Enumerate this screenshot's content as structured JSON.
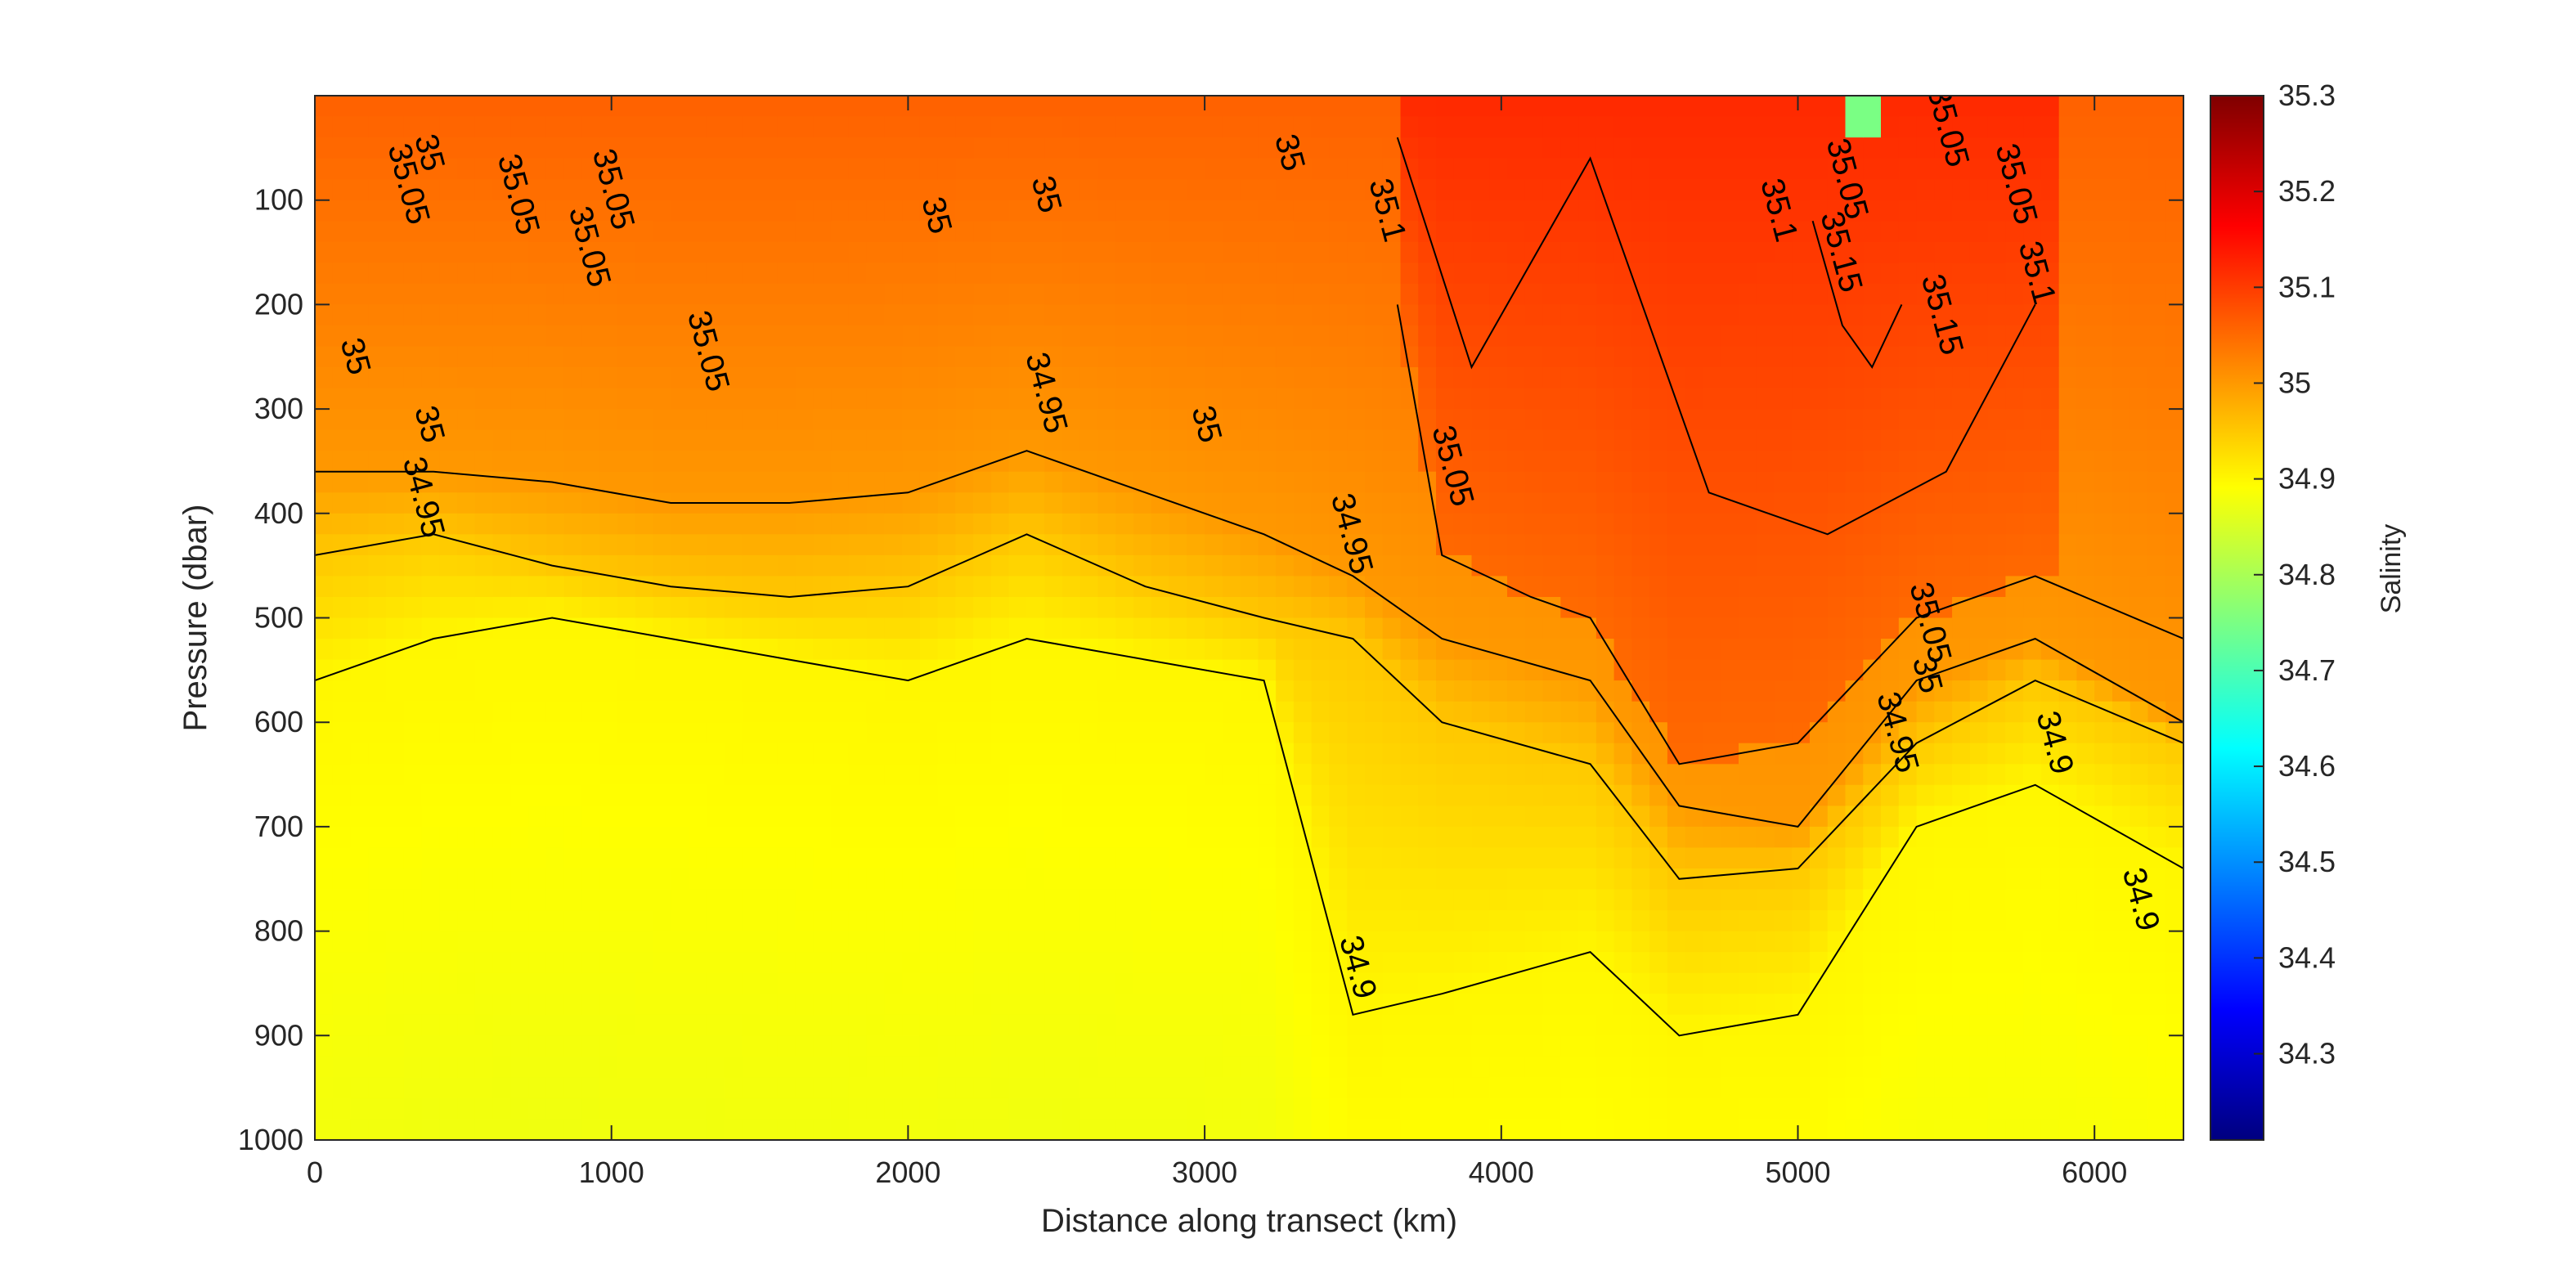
{
  "chart_data": {
    "type": "heatmap",
    "title": "",
    "xlabel": "Distance along transect (km)",
    "ylabel": "Pressure (dbar)",
    "xlim": [
      0,
      6300
    ],
    "ylim": [
      1000,
      0
    ],
    "x_ticks": [
      "0",
      "1000",
      "2000",
      "3000",
      "4000",
      "5000",
      "6000"
    ],
    "x_tick_values": [
      0,
      1000,
      2000,
      3000,
      4000,
      5000,
      6000
    ],
    "y_ticks": [
      "100",
      "200",
      "300",
      "400",
      "500",
      "600",
      "700",
      "800",
      "900",
      "1000"
    ],
    "y_tick_values": [
      100,
      200,
      300,
      400,
      500,
      600,
      700,
      800,
      900,
      1000
    ],
    "colorbar": {
      "label": "Salinity",
      "range": [
        34.21,
        35.3
      ],
      "ticks": [
        "34.3",
        "34.4",
        "34.5",
        "34.6",
        "34.7",
        "34.8",
        "34.9",
        "35",
        "35.1",
        "35.2",
        "35.3"
      ],
      "tick_values": [
        34.3,
        34.4,
        34.5,
        34.6,
        34.7,
        34.8,
        34.9,
        35.0,
        35.1,
        35.2,
        35.3
      ],
      "colormap": [
        "#00007f",
        "#0000ff",
        "#007fff",
        "#00ffff",
        "#7fff7f",
        "#ffff00",
        "#ff7f00",
        "#ff0000",
        "#7f0000"
      ]
    },
    "grid": false,
    "contour_levels": [
      34.9,
      34.95,
      35.0,
      35.05,
      35.1,
      35.15
    ],
    "contours": [
      {
        "level": 34.9,
        "x": [
          0,
          400,
          800,
          1200,
          1600,
          2000,
          2400,
          2800,
          3200,
          3500,
          3800,
          4300,
          4600,
          5000,
          5400,
          5800,
          6300
        ],
        "depth": [
          560,
          520,
          500,
          520,
          540,
          560,
          520,
          540,
          560,
          880,
          860,
          820,
          900,
          880,
          700,
          660,
          740
        ]
      },
      {
        "level": 34.95,
        "x": [
          0,
          400,
          800,
          1200,
          1600,
          2000,
          2400,
          2800,
          3200,
          3500,
          3800,
          4300,
          4600,
          5000,
          5400,
          5800,
          6300
        ],
        "depth": [
          440,
          420,
          450,
          470,
          480,
          470,
          420,
          470,
          500,
          520,
          600,
          640,
          750,
          740,
          620,
          560,
          620
        ]
      },
      {
        "level": 35.0,
        "x": [
          0,
          400,
          800,
          1200,
          1600,
          2000,
          2400,
          2800,
          3200,
          3500,
          3800,
          4300,
          4600,
          5000,
          5400,
          5800,
          6300
        ],
        "depth": [
          360,
          360,
          370,
          390,
          390,
          380,
          340,
          380,
          420,
          460,
          520,
          560,
          680,
          700,
          560,
          520,
          600
        ]
      },
      {
        "level": 35.05,
        "x": [
          3650,
          3800,
          4100,
          4300,
          4600,
          5000,
          5400,
          5800,
          6300
        ],
        "depth": [
          200,
          440,
          480,
          500,
          640,
          620,
          500,
          460,
          520
        ]
      },
      {
        "level": 35.1,
        "x": [
          3650,
          3900,
          4300,
          4700,
          5100,
          5500,
          5800
        ],
        "depth": [
          40,
          260,
          60,
          380,
          420,
          360,
          200
        ]
      },
      {
        "level": 35.15,
        "x": [
          5050,
          5150,
          5250,
          5350
        ],
        "depth": [
          120,
          220,
          260,
          200
        ]
      }
    ],
    "contour_labels": [
      {
        "text": "35",
        "x": 380,
        "y": 55
      },
      {
        "text": "35.05",
        "x": 310,
        "y": 85
      },
      {
        "text": "35.05",
        "x": 680,
        "y": 95
      },
      {
        "text": "35.05",
        "x": 1000,
        "y": 90
      },
      {
        "text": "35.05",
        "x": 920,
        "y": 145
      },
      {
        "text": "35",
        "x": 2090,
        "y": 115
      },
      {
        "text": "35",
        "x": 2460,
        "y": 95
      },
      {
        "text": "35",
        "x": 3280,
        "y": 55
      },
      {
        "text": "35.1",
        "x": 3610,
        "y": 110
      },
      {
        "text": "35.1",
        "x": 4930,
        "y": 110
      },
      {
        "text": "35.05",
        "x": 5500,
        "y": 30
      },
      {
        "text": "35.05",
        "x": 5160,
        "y": 80
      },
      {
        "text": "35.15",
        "x": 5140,
        "y": 150
      },
      {
        "text": "35.05",
        "x": 5730,
        "y": 85
      },
      {
        "text": "35.1",
        "x": 5800,
        "y": 170
      },
      {
        "text": "35.15",
        "x": 5480,
        "y": 210
      },
      {
        "text": "35",
        "x": 130,
        "y": 250
      },
      {
        "text": "35.05",
        "x": 1320,
        "y": 245
      },
      {
        "text": "34.95",
        "x": 2460,
        "y": 285
      },
      {
        "text": "35",
        "x": 3000,
        "y": 315
      },
      {
        "text": "35.05",
        "x": 3830,
        "y": 355
      },
      {
        "text": "35",
        "x": 380,
        "y": 315
      },
      {
        "text": "34.95",
        "x": 360,
        "y": 385
      },
      {
        "text": "34.95",
        "x": 3490,
        "y": 420
      },
      {
        "text": "35.05",
        "x": 5440,
        "y": 505
      },
      {
        "text": "35",
        "x": 5430,
        "y": 555
      },
      {
        "text": "34.95",
        "x": 5330,
        "y": 610
      },
      {
        "text": "34.9",
        "x": 5860,
        "y": 620
      },
      {
        "text": "34.9",
        "x": 6150,
        "y": 770
      },
      {
        "text": "34.9",
        "x": 3510,
        "y": 835
      }
    ]
  }
}
